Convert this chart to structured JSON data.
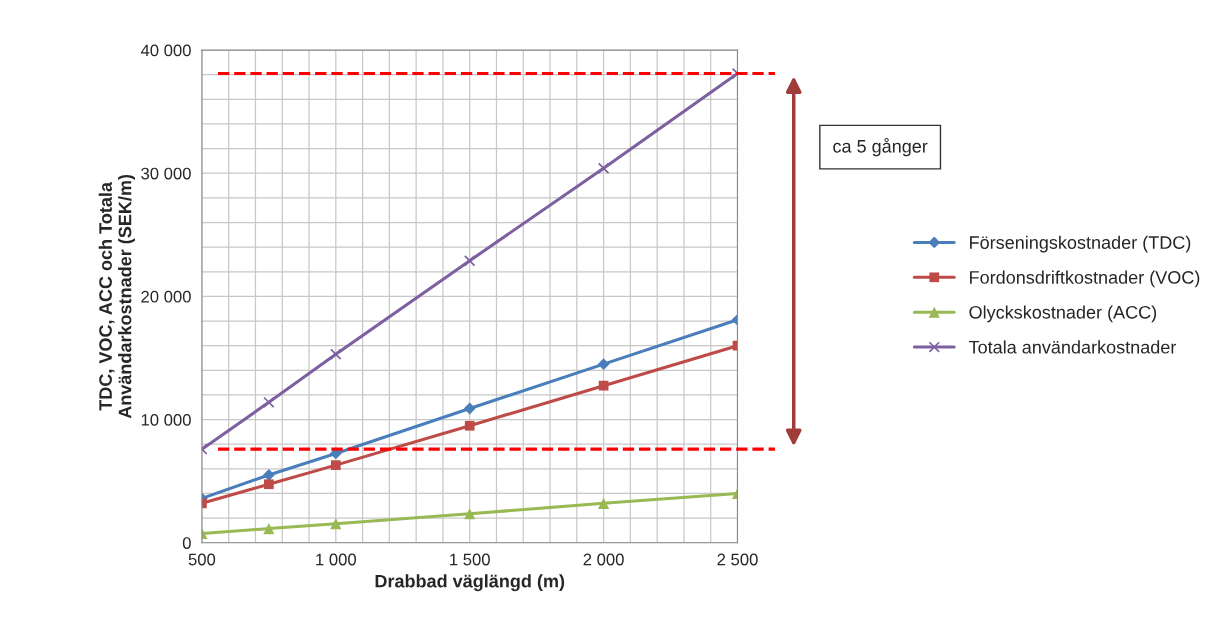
{
  "chart_data": {
    "type": "line",
    "x": [
      500,
      750,
      1000,
      1500,
      2000,
      2500
    ],
    "xlabel": "Drabbad väglängd (m)",
    "ylabel": "TDC, VOC, ACC och Totala\nAnvändarkostnader (SEK/m)",
    "series": [
      {
        "name": "Förseningskostnader (TDC)",
        "color": "#4a7ebb",
        "marker": "diamond",
        "values": [
          3600,
          5500,
          7250,
          10900,
          14500,
          18100
        ]
      },
      {
        "name": "Fordonsdriftkostnader (VOC)",
        "color": "#be4b48",
        "marker": "square",
        "values": [
          3200,
          4750,
          6300,
          9500,
          12750,
          16000
        ]
      },
      {
        "name": "Olyckskostnader (ACC)",
        "color": "#98b954",
        "marker": "triangle",
        "values": [
          750,
          1150,
          1550,
          2350,
          3200,
          4000
        ]
      },
      {
        "name": "Totala användarkostnader",
        "color": "#7d60a0",
        "marker": "cross",
        "values": [
          7600,
          11400,
          15300,
          22900,
          30400,
          38100
        ]
      }
    ],
    "xlim": [
      500,
      2500
    ],
    "xticks": [
      500,
      {
        "value": 1000,
        "label": "1 000"
      },
      {
        "value": 1500,
        "label": "1 500"
      },
      {
        "value": 2000,
        "label": "2 000"
      },
      {
        "value": 2500,
        "label": "2 500"
      }
    ],
    "ylim": [
      0,
      40000
    ],
    "yticks": [
      0,
      {
        "value": 10000,
        "label": "10 000"
      },
      {
        "value": 20000,
        "label": "20 000"
      },
      {
        "value": 30000,
        "label": "30 000"
      },
      {
        "value": 40000,
        "label": "40 000"
      }
    ],
    "grid": true,
    "legend": "right",
    "ref_lines": [
      {
        "axis": "y",
        "value": 7600,
        "color": "#ff0000",
        "line_style": "dashed"
      },
      {
        "axis": "y",
        "value": 38100,
        "color": "#ff0000",
        "line_style": "dashed"
      }
    ],
    "annotations": [
      "ca 5 gånger"
    ]
  }
}
